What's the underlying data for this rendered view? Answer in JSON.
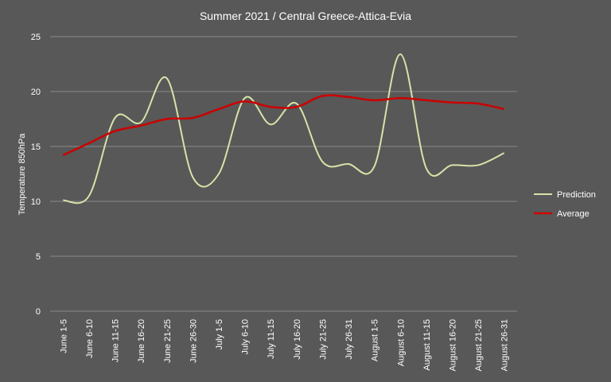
{
  "chart_data": {
    "type": "line",
    "title": "Summer 2021 / Central Greece-Attica-Evia",
    "xlabel": "",
    "ylabel": "Temperature 850hPa",
    "ylim": [
      0,
      25
    ],
    "yticks": [
      0,
      5,
      10,
      15,
      20,
      25
    ],
    "grid": true,
    "legend_position": "right",
    "categories": [
      "June 1-5",
      "June 6-10",
      "June 11-15",
      "June 16-20",
      "June 21-25",
      "June 26-30",
      "July 1-5",
      "July 6-10",
      "July 11-15",
      "July 16-20",
      "July 21-25",
      "July 26-31",
      "August 1-5",
      "August 6-10",
      "August 11-15",
      "August 16-20",
      "August 21-25",
      "August 26-31"
    ],
    "series": [
      {
        "name": "Prediction",
        "color": "#d6e3a8",
        "values": [
          10.1,
          10.5,
          17.6,
          17.2,
          21.2,
          12.2,
          12.5,
          19.4,
          17.0,
          18.9,
          13.6,
          13.4,
          13.2,
          23.4,
          13.0,
          13.3,
          13.3,
          14.4
        ]
      },
      {
        "name": "Average",
        "color": "#cc0000",
        "values": [
          14.2,
          15.3,
          16.4,
          16.9,
          17.5,
          17.6,
          18.4,
          19.1,
          18.6,
          18.6,
          19.6,
          19.5,
          19.2,
          19.4,
          19.2,
          19.0,
          18.9,
          18.4
        ]
      }
    ]
  }
}
